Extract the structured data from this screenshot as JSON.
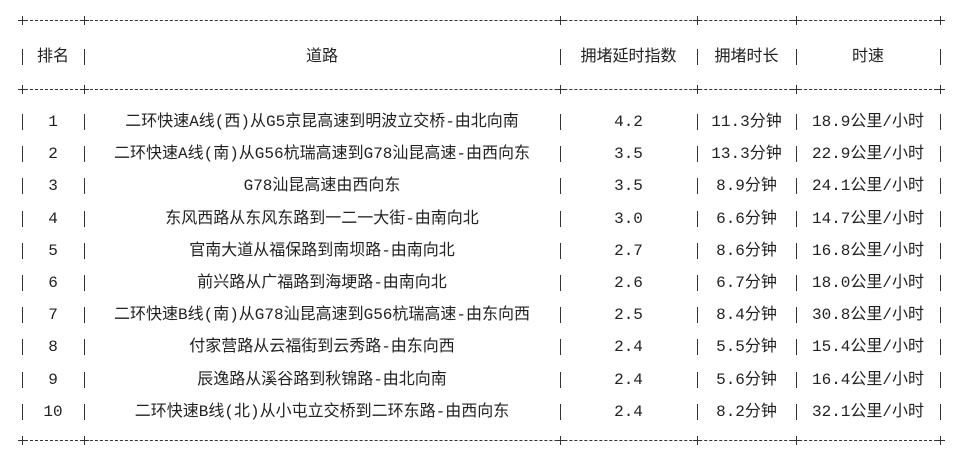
{
  "headers": [
    "排名",
    "道路",
    "拥堵延时指数",
    "拥堵时长",
    "时速"
  ],
  "rows": [
    {
      "rank": "1",
      "road": "二环快速A线(西)从G5京昆高速到明波立交桥-由北向南",
      "index": "4.2",
      "duration": "11.3分钟",
      "speed": "18.9公里/小时"
    },
    {
      "rank": "2",
      "road": "二环快速A线(南)从G56杭瑞高速到G78汕昆高速-由西向东",
      "index": "3.5",
      "duration": "13.3分钟",
      "speed": "22.9公里/小时"
    },
    {
      "rank": "3",
      "road": "G78汕昆高速由西向东",
      "index": "3.5",
      "duration": "8.9分钟",
      "speed": "24.1公里/小时"
    },
    {
      "rank": "4",
      "road": "东风西路从东风东路到一二一大街-由南向北",
      "index": "3.0",
      "duration": "6.6分钟",
      "speed": "14.7公里/小时"
    },
    {
      "rank": "5",
      "road": "官南大道从福保路到南坝路-由南向北",
      "index": "2.7",
      "duration": "8.6分钟",
      "speed": "16.8公里/小时"
    },
    {
      "rank": "6",
      "road": "前兴路从广福路到海埂路-由南向北",
      "index": "2.6",
      "duration": "6.7分钟",
      "speed": "18.0公里/小时"
    },
    {
      "rank": "7",
      "road": "二环快速B线(南)从G78汕昆高速到G56杭瑞高速-由东向西",
      "index": "2.5",
      "duration": "8.4分钟",
      "speed": "30.8公里/小时"
    },
    {
      "rank": "8",
      "road": "付家营路从云福街到云秀路-由东向西",
      "index": "2.4",
      "duration": "5.5分钟",
      "speed": "15.4公里/小时"
    },
    {
      "rank": "9",
      "road": "辰逸路从溪谷路到秋锦路-由北向南",
      "index": "2.4",
      "duration": "5.6分钟",
      "speed": "16.4公里/小时"
    },
    {
      "rank": "10",
      "road": "二环快速B线(北)从小屯立交桥到二环东路-由西向东",
      "index": "2.4",
      "duration": "8.2分钟",
      "speed": "32.1公里/小时"
    }
  ]
}
